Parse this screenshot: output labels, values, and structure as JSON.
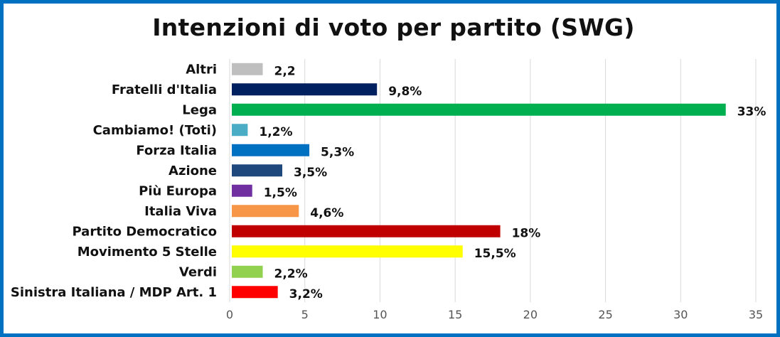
{
  "chart_data": {
    "type": "bar",
    "orientation": "horizontal",
    "title": "Intenzioni di voto per partito (SWG)",
    "xlabel": "",
    "ylabel": "",
    "xlim": [
      0,
      35
    ],
    "xticks": [
      "0",
      "5",
      "10",
      "15",
      "20",
      "25",
      "30",
      "35"
    ],
    "grid": true,
    "legend": "none",
    "categories": [
      "Altri",
      "Fratelli d'Italia",
      "Lega",
      "Cambiamo! (Toti)",
      "Forza Italia",
      "Azione",
      "Più Europa",
      "Italia Viva",
      "Partito Democratico",
      "Movimento 5 Stelle",
      "Verdi",
      "Sinistra Italiana / MDP Art. 1"
    ],
    "values": [
      2.2,
      9.8,
      33,
      1.2,
      5.3,
      3.5,
      1.5,
      4.6,
      18,
      15.5,
      2.2,
      3.2
    ],
    "labels": [
      "2,2",
      "9,8%",
      "33%",
      "1,2%",
      "5,3%",
      "3,5%",
      "1,5%",
      "4,6%",
      "18%",
      "15,5%",
      "2,2%",
      "3,2%"
    ],
    "colors": [
      "#bfbfbf",
      "#002060",
      "#00b050",
      "#4bacc6",
      "#0070c0",
      "#1f497d",
      "#7030a0",
      "#f79646",
      "#c00000",
      "#ffff00",
      "#92d050",
      "#ff0000"
    ]
  }
}
